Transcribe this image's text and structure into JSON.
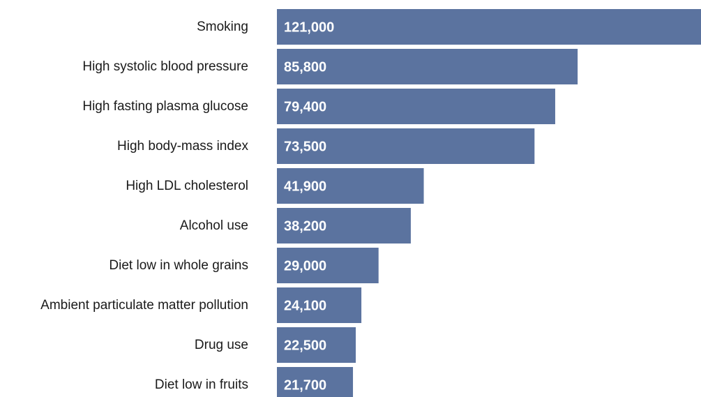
{
  "chart_data": {
    "type": "bar",
    "orientation": "horizontal",
    "title": "",
    "xlabel": "",
    "ylabel": "",
    "categories": [
      "Smoking",
      "High systolic blood pressure",
      "High fasting plasma glucose",
      "High body-mass index",
      "High LDL cholesterol",
      "Alcohol use",
      "Diet low in whole grains",
      "Ambient particulate matter pollution",
      "Drug use",
      "Diet low in fruits"
    ],
    "values": [
      121000,
      85800,
      79400,
      73500,
      41900,
      38200,
      29000,
      24100,
      22500,
      21700
    ],
    "value_labels": [
      "121,000",
      "85,800",
      "79,400",
      "73,500",
      "41,900",
      "38,200",
      "29,000",
      "24,100",
      "22,500",
      "21,700"
    ],
    "xlim": [
      0,
      121000
    ],
    "grid": false,
    "legend": "none",
    "bar_color": "#5b739f",
    "label_color": "#ffffff"
  }
}
